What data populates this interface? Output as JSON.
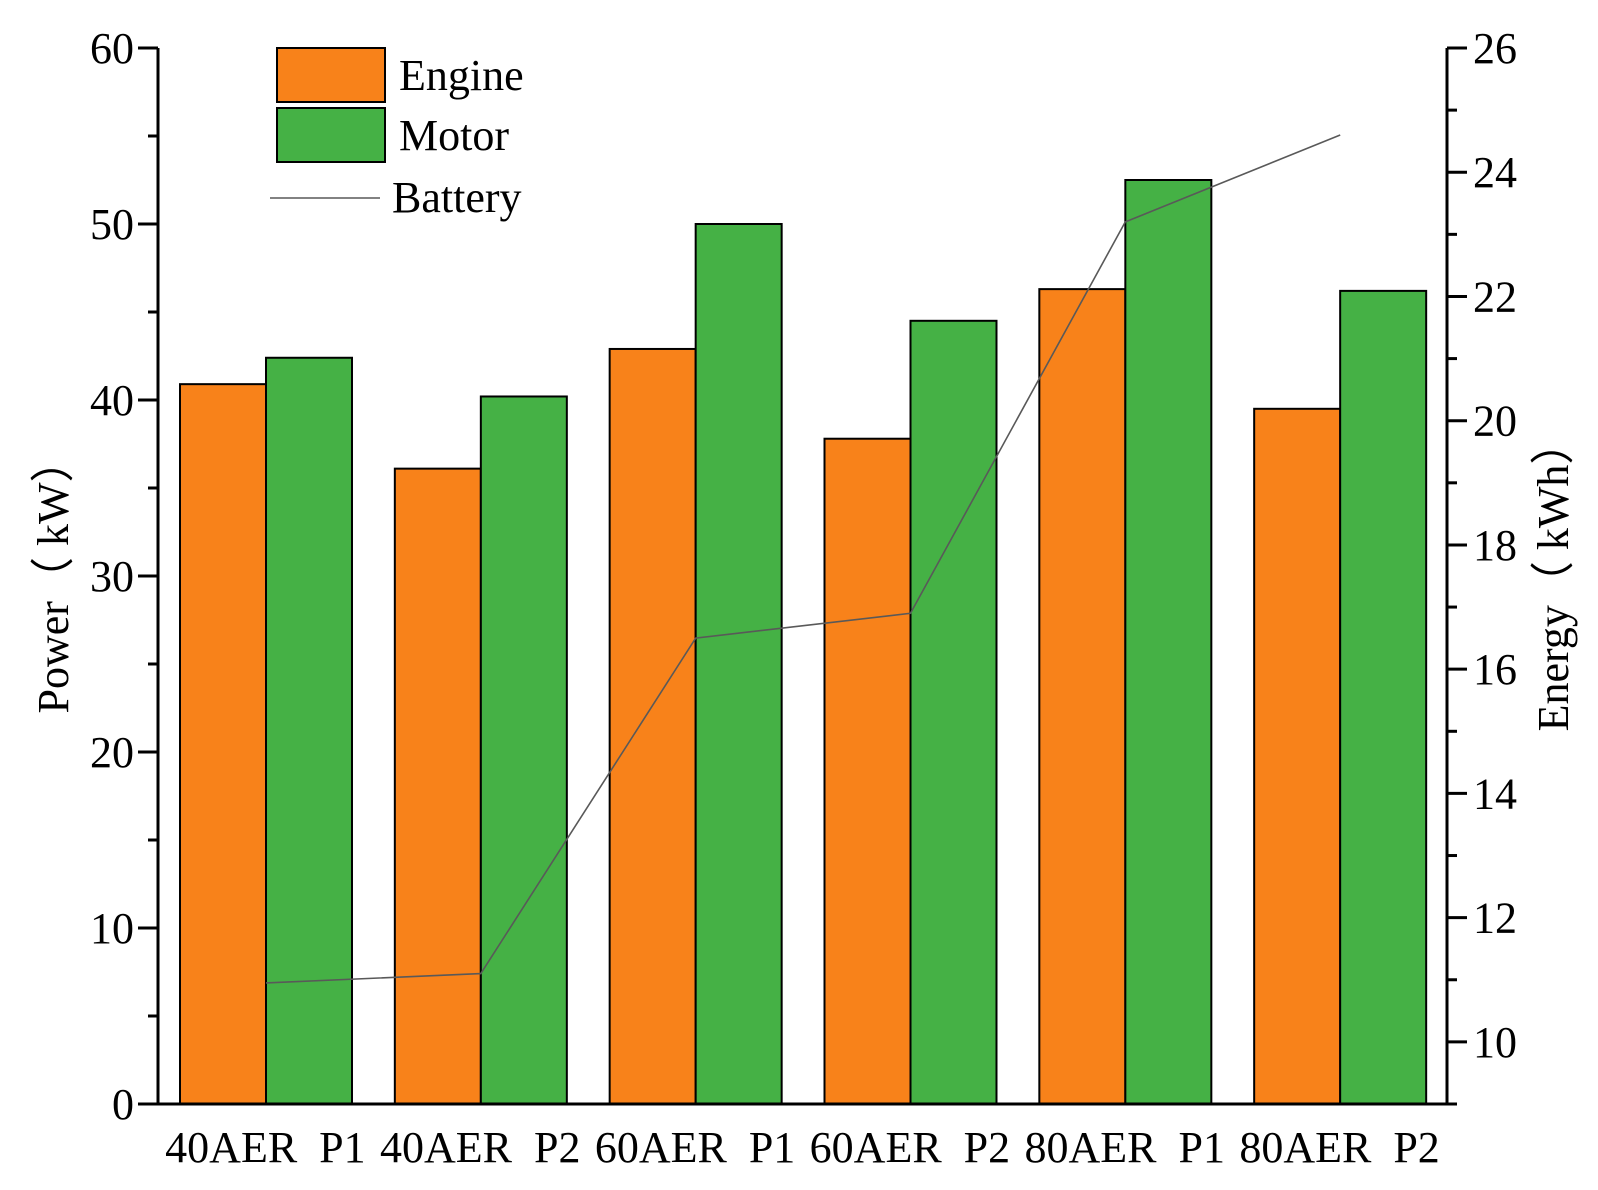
{
  "chart_data": {
    "type": "bar",
    "title": "",
    "categories": [
      "40AER  P1",
      "40AER  P2",
      "60AER  P1",
      "60AER  P2",
      "80AER  P1",
      "80AER  P2"
    ],
    "series": [
      {
        "name": "Engine",
        "type": "bar",
        "axis": "left",
        "color": "#F8821A",
        "values": [
          40.9,
          36.1,
          42.9,
          37.8,
          46.3,
          39.5
        ]
      },
      {
        "name": "Motor",
        "type": "bar",
        "axis": "left",
        "color": "#45B145",
        "values": [
          42.4,
          40.2,
          50.0,
          44.5,
          52.5,
          46.2
        ]
      },
      {
        "name": "Battery",
        "type": "line",
        "axis": "right",
        "color": "#595959",
        "values": [
          10.95,
          11.1,
          16.5,
          16.9,
          23.2,
          24.6
        ]
      }
    ],
    "ylabel": "Power（ kW）",
    "y2label": "Energy（ kWh）",
    "ylim": [
      0,
      60
    ],
    "y2lim": [
      9,
      26
    ],
    "yticks": [
      "0",
      "10",
      "20",
      "30",
      "40",
      "50",
      "60"
    ],
    "y2ticks": [
      "10",
      "12",
      "14",
      "16",
      "18",
      "20",
      "22",
      "24",
      "26"
    ],
    "legend_position": "top-left",
    "grid": false
  }
}
